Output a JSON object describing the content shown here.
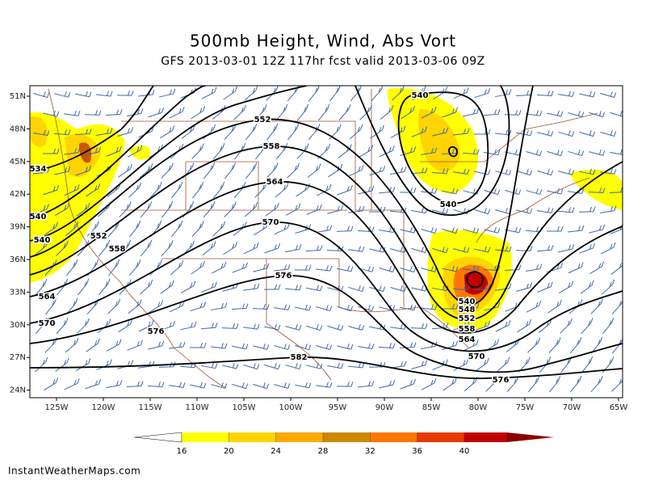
{
  "header": {
    "title": "500mb Height, Wind, Abs Vort",
    "subtitle": "GFS 2013-03-01 12Z 117hr fcst valid 2013-03-06 09Z"
  },
  "map": {
    "lat_labels": [
      "51N",
      "48N",
      "45N",
      "42N",
      "39N",
      "36N",
      "33N",
      "30N",
      "27N",
      "24N"
    ],
    "lon_labels": [
      "125W",
      "120W",
      "115W",
      "110W",
      "105W",
      "100W",
      "95W",
      "90W",
      "85W",
      "80W",
      "75W",
      "70W",
      "65W"
    ],
    "contour_labels": [
      "534",
      "540",
      "540",
      "552",
      "558",
      "564",
      "570",
      "576",
      "582",
      "576",
      "570",
      "564",
      "558",
      "552",
      "540",
      "540",
      "540",
      "548",
      "552",
      "558",
      "564",
      "570",
      "576"
    ]
  },
  "colorbar": {
    "levels": [
      16,
      20,
      24,
      28,
      32,
      36,
      40
    ],
    "colors": [
      "#ffffff",
      "#ffff00",
      "#ffd400",
      "#ffaa00",
      "#cc8800",
      "#ff7700",
      "#e63a00",
      "#c00000",
      "#8b0000"
    ]
  },
  "footer": {
    "credit": "InstantWeatherMaps.com"
  }
}
